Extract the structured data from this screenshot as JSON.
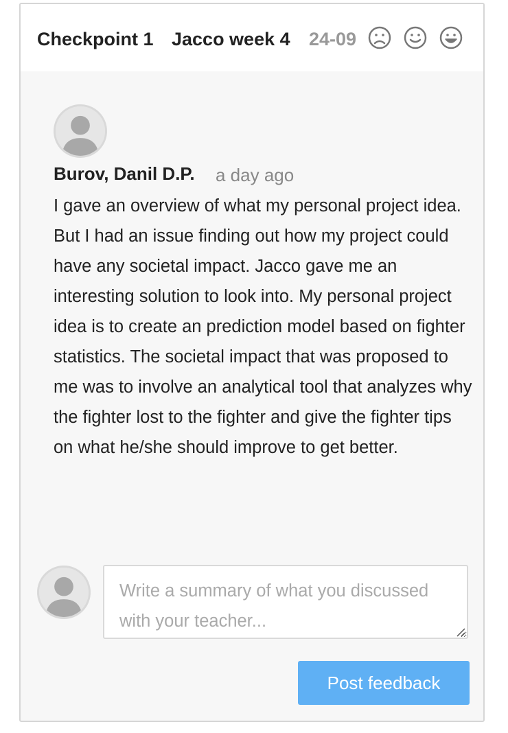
{
  "header": {
    "title": "Checkpoint 1",
    "subtitle": "Jacco week 4",
    "date": "24-09",
    "moods": [
      {
        "name": "sad-face-icon"
      },
      {
        "name": "neutral-smile-icon"
      },
      {
        "name": "happy-face-icon"
      }
    ]
  },
  "comment": {
    "author": "Burov, Danil D.P.",
    "time": "a day ago",
    "text": "I gave an overview of what my personal project idea. But I had an issue finding out how my project could have any societal impact. Jacco gave me an interesting solution to look into. My personal project idea is to create an prediction model based on fighter statistics. The societal impact that was proposed to me was to involve an analytical tool that analyzes why the fighter lost to the fighter and give the fighter tips on what he/she should improve to get better."
  },
  "reply": {
    "placeholder": "Write a summary of what you discussed with your teacher...",
    "value": ""
  },
  "actions": {
    "post_label": "Post feedback"
  },
  "colors": {
    "accent": "#5fb0f4",
    "panel_bg": "#f7f7f7",
    "muted_text": "#888888"
  }
}
